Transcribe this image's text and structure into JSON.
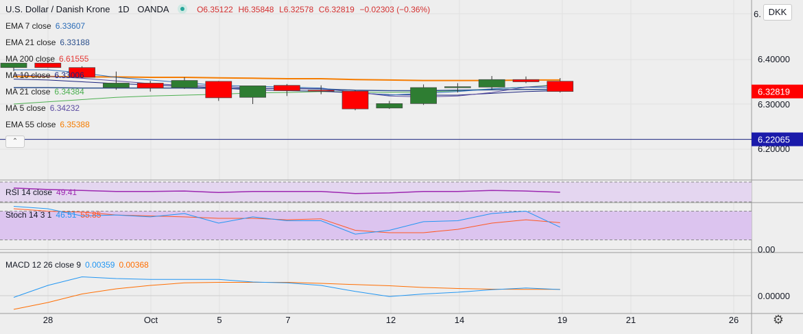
{
  "header": {
    "symbol": "U.S. Dollar / Danish Krone",
    "interval": "1D",
    "source": "OANDA",
    "ohlc": {
      "o": "O6.35122",
      "h": "H6.35848",
      "l": "L6.32578",
      "c": "C6.32819",
      "change": "−0.02303 (−0.36%)"
    }
  },
  "currency_button": "DKK",
  "colors": {
    "up": "#2e7d32",
    "down": "#ff0000",
    "ema7": "#2a6cb8",
    "ema21": "#2b4f8c",
    "ma200": "#e53935",
    "ma10": "#1a237e",
    "ma21": "#4caf50",
    "ma5": "#5a4ba0",
    "ema55": "#f57c00",
    "rsi": "#9c27b0",
    "stoch_k": "#2196f3",
    "stoch_d": "#ff5722",
    "macd": "#2196f3",
    "signal": "#ff6d00",
    "hline": "#1a237e"
  },
  "overlays": [
    {
      "label": "EMA 7 close",
      "value": "6.33607",
      "color": "#2a6cb8"
    },
    {
      "label": "EMA 21 close",
      "value": "6.33188",
      "color": "#2b4f8c"
    },
    {
      "label": "MA 200 close",
      "value": "6.61555",
      "color": "#e53935"
    },
    {
      "label": "MA 10 close",
      "value": "6.33006",
      "color": "#1a237e"
    },
    {
      "label": "MA 21 close",
      "value": "6.34384",
      "color": "#4caf50"
    },
    {
      "label": "MA 5 close",
      "value": "6.34232",
      "color": "#5a4ba0"
    },
    {
      "label": "EMA 55 close",
      "value": "6.35388",
      "color": "#f57c00"
    }
  ],
  "price_axis": {
    "ticks": [
      "6.40000",
      "6.30000",
      "6.20000"
    ],
    "last_price": "6.32819",
    "hline_price": "6.22065",
    "top_partial": "6."
  },
  "time_axis": {
    "ticks": [
      "28",
      "Oct",
      "5",
      "7",
      "12",
      "14",
      "19",
      "21",
      "26"
    ]
  },
  "rsi": {
    "label": "RSI 14 close",
    "value": "49.41"
  },
  "stoch": {
    "label": "Stoch 14 3 1",
    "k": "46.51",
    "d": "55.85",
    "axis_tick": "0.00"
  },
  "macd": {
    "label": "MACD 12 26 close 9",
    "macd": "0.00359",
    "signal": "0.00368",
    "axis_tick": "0.00000"
  },
  "chart_data": {
    "type": "candlestick",
    "title": "U.S. Dollar / Danish Krone, 1D, OANDA",
    "candles": [
      {
        "date": "Sep 25",
        "o": 6.382,
        "h": 6.392,
        "l": 6.374,
        "c": 6.392
      },
      {
        "date": "Sep 28",
        "o": 6.392,
        "h": 6.398,
        "l": 6.381,
        "c": 6.382
      },
      {
        "date": "Sep 29",
        "o": 6.382,
        "h": 6.385,
        "l": 6.358,
        "c": 6.36
      },
      {
        "date": "Sep 30",
        "o": 6.337,
        "h": 6.373,
        "l": 6.332,
        "c": 6.347
      },
      {
        "date": "Oct 1",
        "o": 6.347,
        "h": 6.352,
        "l": 6.328,
        "c": 6.336
      },
      {
        "date": "Oct 2",
        "o": 6.337,
        "h": 6.36,
        "l": 6.334,
        "c": 6.353
      },
      {
        "date": "Oct 5",
        "o": 6.351,
        "h": 6.352,
        "l": 6.307,
        "c": 6.314
      },
      {
        "date": "Oct 6",
        "o": 6.315,
        "h": 6.341,
        "l": 6.3,
        "c": 6.341
      },
      {
        "date": "Oct 7",
        "o": 6.342,
        "h": 6.345,
        "l": 6.318,
        "c": 6.33
      },
      {
        "date": "Oct 8",
        "o": 6.331,
        "h": 6.342,
        "l": 6.322,
        "c": 6.329
      },
      {
        "date": "Oct 9",
        "o": 6.329,
        "h": 6.331,
        "l": 6.286,
        "c": 6.289
      },
      {
        "date": "Oct 12",
        "o": 6.291,
        "h": 6.307,
        "l": 6.289,
        "c": 6.301
      },
      {
        "date": "Oct 13",
        "o": 6.301,
        "h": 6.344,
        "l": 6.298,
        "c": 6.337
      },
      {
        "date": "Oct 14",
        "o": 6.337,
        "h": 6.347,
        "l": 6.326,
        "c": 6.339
      },
      {
        "date": "Oct 15",
        "o": 6.338,
        "h": 6.363,
        "l": 6.333,
        "c": 6.355
      },
      {
        "date": "Oct 16",
        "o": 6.355,
        "h": 6.362,
        "l": 6.347,
        "c": 6.35
      },
      {
        "date": "Oct 19",
        "o": 6.35122,
        "h": 6.35848,
        "l": 6.32578,
        "c": 6.32819
      }
    ],
    "ema55": [
      6.362,
      6.362,
      6.361,
      6.361,
      6.36,
      6.36,
      6.359,
      6.358,
      6.357,
      6.357,
      6.355,
      6.354,
      6.353,
      6.353,
      6.353,
      6.354,
      6.354
    ],
    "ma21": [
      6.3,
      6.305,
      6.31,
      6.315,
      6.318,
      6.32,
      6.322,
      6.325,
      6.326,
      6.328,
      6.327,
      6.326,
      6.327,
      6.33,
      6.334,
      6.338,
      6.344
    ],
    "ema21": [
      6.337,
      6.337,
      6.336,
      6.336,
      6.336,
      6.336,
      6.335,
      6.335,
      6.335,
      6.334,
      6.331,
      6.33,
      6.33,
      6.331,
      6.332,
      6.333,
      6.332
    ],
    "ema7": [
      6.377,
      6.377,
      6.37,
      6.36,
      6.354,
      6.348,
      6.342,
      6.34,
      6.338,
      6.336,
      6.326,
      6.32,
      6.324,
      6.328,
      6.334,
      6.338,
      6.336
    ],
    "ma10": [
      6.356,
      6.354,
      6.35,
      6.346,
      6.343,
      6.34,
      6.336,
      6.332,
      6.33,
      6.329,
      6.325,
      6.321,
      6.32,
      6.32,
      6.324,
      6.328,
      6.33
    ],
    "ma5": [
      6.366,
      6.362,
      6.358,
      6.352,
      6.346,
      6.342,
      6.34,
      6.336,
      6.334,
      6.334,
      6.327,
      6.318,
      6.316,
      6.318,
      6.326,
      6.338,
      6.342
    ],
    "hline": 6.22065,
    "rsi": [
      58,
      55,
      53,
      51,
      51,
      52,
      49,
      51,
      51,
      51,
      47,
      48,
      51,
      51,
      53,
      52,
      49.41
    ],
    "stoch_k": [
      90,
      85,
      70,
      72,
      68,
      75,
      55,
      68,
      60,
      60,
      32,
      40,
      58,
      60,
      75,
      80,
      46.51
    ],
    "stoch_d": [
      85,
      80,
      78,
      72,
      70,
      68,
      65,
      65,
      62,
      64,
      40,
      35,
      35,
      42,
      55,
      62,
      55.85
    ],
    "macd": [
      -0.001,
      0.006,
      0.011,
      0.01,
      0.0095,
      0.0095,
      0.0095,
      0.008,
      0.0075,
      0.006,
      0.0025,
      -0.0005,
      0.001,
      0.002,
      0.0035,
      0.0045,
      0.00359
    ],
    "signal": [
      -0.008,
      -0.004,
      0.001,
      0.004,
      0.006,
      0.0075,
      0.0078,
      0.0078,
      0.0078,
      0.0072,
      0.0065,
      0.0058,
      0.0048,
      0.0042,
      0.0038,
      0.0037,
      0.00368
    ],
    "rsi_band": [
      30,
      70
    ],
    "stoch_band": [
      20,
      80
    ]
  }
}
